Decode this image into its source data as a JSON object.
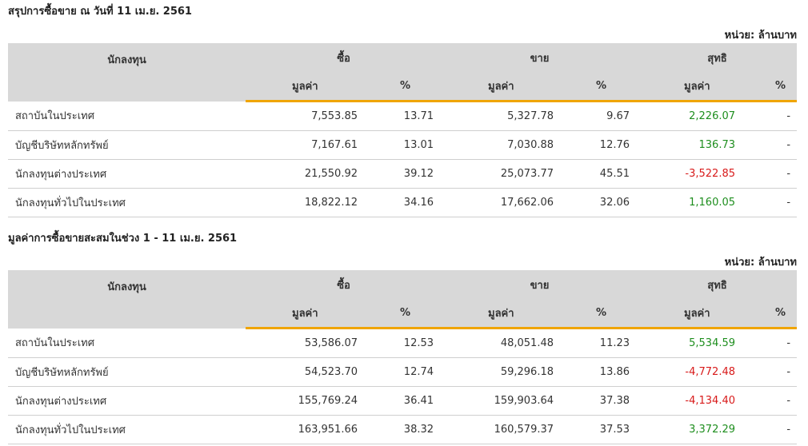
{
  "tables": [
    {
      "title": "สรุปการซื้อขาย ณ วันที่ 11 เม.ย. 2561",
      "unit": "หน่วย: ล้านบาท",
      "headers": {
        "investor": "นักลงทุน",
        "buy": "ซื้อ",
        "sell": "ขาย",
        "net": "สุทธิ",
        "value": "มูลค่า",
        "percent": "%"
      },
      "rows": [
        {
          "name": "สถาบันในประเทศ",
          "buy_value": "7,553.85",
          "buy_pct": "13.71",
          "sell_value": "5,327.78",
          "sell_pct": "9.67",
          "net_value": "2,226.07",
          "net_pct": "-",
          "net_sign": "pos"
        },
        {
          "name": "บัญชีบริษัทหลักทรัพย์",
          "buy_value": "7,167.61",
          "buy_pct": "13.01",
          "sell_value": "7,030.88",
          "sell_pct": "12.76",
          "net_value": "136.73",
          "net_pct": "-",
          "net_sign": "pos"
        },
        {
          "name": "นักลงทุนต่างประเทศ",
          "buy_value": "21,550.92",
          "buy_pct": "39.12",
          "sell_value": "25,073.77",
          "sell_pct": "45.51",
          "net_value": "-3,522.85",
          "net_pct": "-",
          "net_sign": "neg"
        },
        {
          "name": "นักลงทุนทั่วไปในประเทศ",
          "buy_value": "18,822.12",
          "buy_pct": "34.16",
          "sell_value": "17,662.06",
          "sell_pct": "32.06",
          "net_value": "1,160.05",
          "net_pct": "-",
          "net_sign": "pos"
        }
      ]
    },
    {
      "title": "มูลค่าการซื้อขายสะสมในช่วง 1 - 11 เม.ย. 2561",
      "unit": "หน่วย: ล้านบาท",
      "headers": {
        "investor": "นักลงทุน",
        "buy": "ซื้อ",
        "sell": "ขาย",
        "net": "สุทธิ",
        "value": "มูลค่า",
        "percent": "%"
      },
      "rows": [
        {
          "name": "สถาบันในประเทศ",
          "buy_value": "53,586.07",
          "buy_pct": "12.53",
          "sell_value": "48,051.48",
          "sell_pct": "11.23",
          "net_value": "5,534.59",
          "net_pct": "-",
          "net_sign": "pos"
        },
        {
          "name": "บัญชีบริษัทหลักทรัพย์",
          "buy_value": "54,523.70",
          "buy_pct": "12.74",
          "sell_value": "59,296.18",
          "sell_pct": "13.86",
          "net_value": "-4,772.48",
          "net_pct": "-",
          "net_sign": "neg"
        },
        {
          "name": "นักลงทุนต่างประเทศ",
          "buy_value": "155,769.24",
          "buy_pct": "36.41",
          "sell_value": "159,903.64",
          "sell_pct": "37.38",
          "net_value": "-4,134.40",
          "net_pct": "-",
          "net_sign": "neg"
        },
        {
          "name": "นักลงทุนทั่วไปในประเทศ",
          "buy_value": "163,951.66",
          "buy_pct": "38.32",
          "sell_value": "160,579.37",
          "sell_pct": "37.53",
          "net_value": "3,372.29",
          "net_pct": "-",
          "net_sign": "pos"
        }
      ]
    }
  ]
}
